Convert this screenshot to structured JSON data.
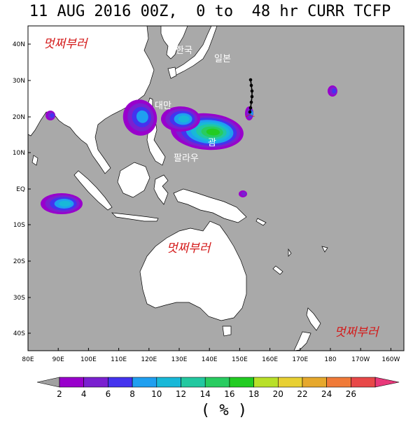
{
  "title": "11 AUG 2016 00Z,  0 to  48 hr CURR TCFP",
  "watermark": "멋쩌부러",
  "places": {
    "korea": "한국",
    "japan": "일본",
    "taiwan": "대만",
    "palau": "팔라우",
    "guam": "괌"
  },
  "lat_labels": [
    "40N",
    "30N",
    "20N",
    "10N",
    "EQ",
    "10S",
    "20S",
    "30S",
    "40S"
  ],
  "lon_labels": [
    "80E",
    "90E",
    "100E",
    "110E",
    "120E",
    "130E",
    "140E",
    "150E",
    "160E",
    "170E",
    "180",
    "170W",
    "160W"
  ],
  "colorbar": {
    "ticks": [
      "2",
      "4",
      "6",
      "8",
      "10",
      "12",
      "14",
      "16",
      "18",
      "20",
      "22",
      "24",
      "26"
    ],
    "colors": [
      "#9900cc",
      "#7a20d0",
      "#4433ee",
      "#1f9ff0",
      "#18b8d8",
      "#22c8a0",
      "#28cc60",
      "#22cc22",
      "#b8e028",
      "#e8d032",
      "#e6a82c",
      "#f07a38",
      "#e84848",
      "#e8387a"
    ],
    "unit": "( % )"
  },
  "colors": {
    "ocean": "#a9a9a9",
    "land": "#ffffff",
    "watermark": "#d41a1a",
    "track": "#000000"
  }
}
